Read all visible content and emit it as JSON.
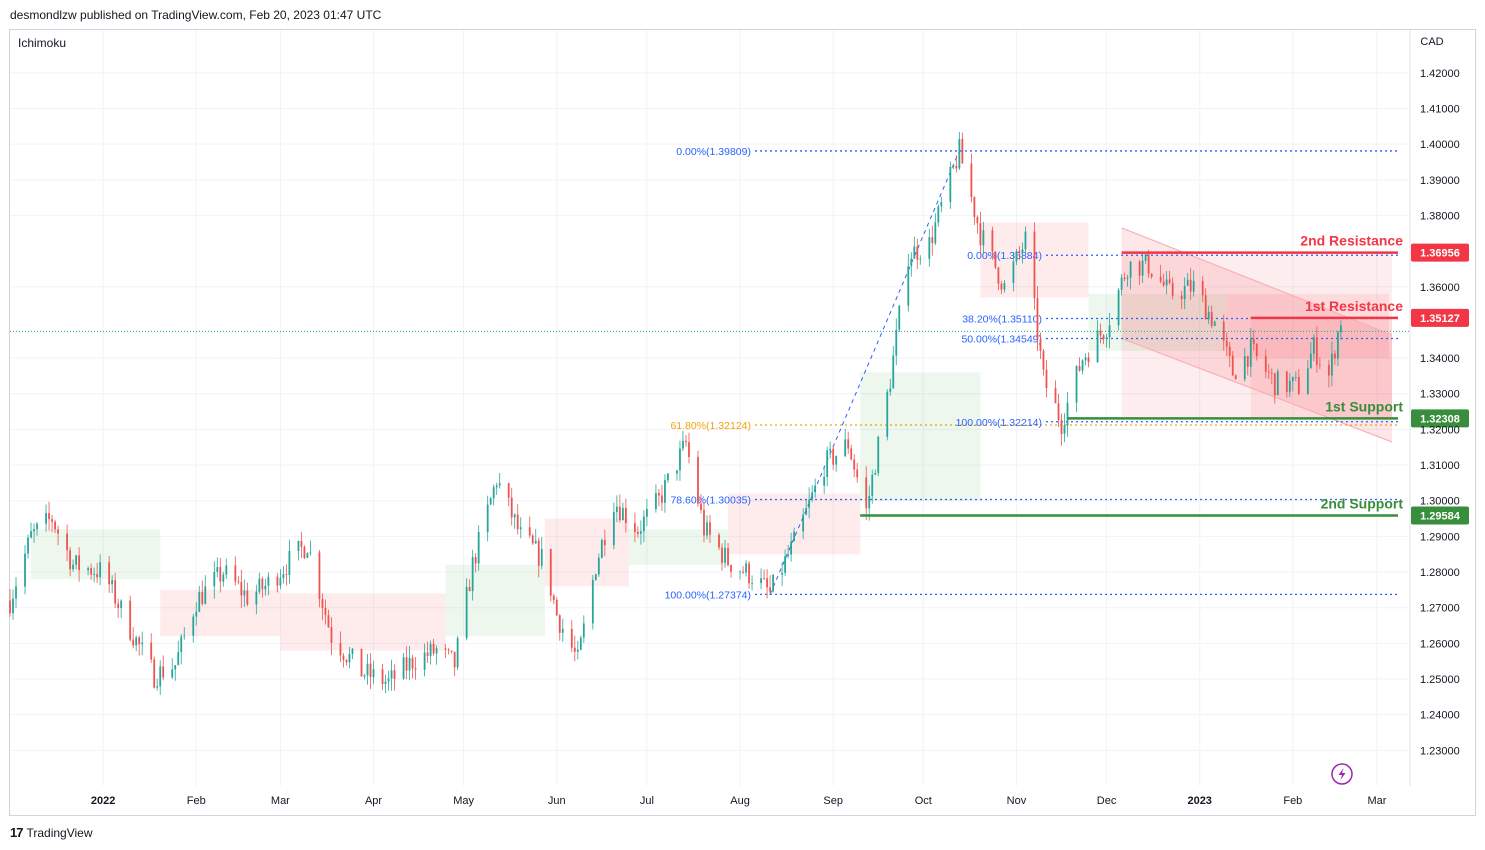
{
  "header": {
    "publisher": "desmondlzw published on TradingView.com, Feb 20, 2023 01:47 UTC"
  },
  "indicator": "Ichimoku",
  "currency": "CAD",
  "footer": {
    "brand": "TradingView",
    "logo": "17"
  },
  "colors": {
    "up": "#26a69a",
    "down": "#ef5350",
    "resistance": "#f23645",
    "support": "#388e3c",
    "fib_blue": "#2962ff",
    "fib_gold": "#f0a30a",
    "channel": "#f8b0b5",
    "price_line": "#26a69a"
  },
  "icons": {
    "flash": "lightning-icon"
  },
  "chart_data": {
    "type": "candlestick",
    "symbol_currency": "CAD",
    "ylim": [
      1.22,
      1.432
    ],
    "y_ticks": [
      "1.42000",
      "1.41000",
      "1.40000",
      "1.39000",
      "1.38000",
      "1.36000",
      "1.34000",
      "1.33000",
      "1.32000",
      "1.31000",
      "1.30000",
      "1.29000",
      "1.28000",
      "1.27000",
      "1.26000",
      "1.25000",
      "1.24000",
      "1.23000"
    ],
    "x_ticks": [
      {
        "label": "2022",
        "date": "2022-01-01",
        "bold": true
      },
      {
        "label": "Feb",
        "date": "2022-02-01"
      },
      {
        "label": "Mar",
        "date": "2022-03-01"
      },
      {
        "label": "Apr",
        "date": "2022-04-01"
      },
      {
        "label": "May",
        "date": "2022-05-01"
      },
      {
        "label": "Jun",
        "date": "2022-06-01"
      },
      {
        "label": "Jul",
        "date": "2022-07-01"
      },
      {
        "label": "Aug",
        "date": "2022-08-01"
      },
      {
        "label": "Sep",
        "date": "2022-09-01"
      },
      {
        "label": "Oct",
        "date": "2022-10-01"
      },
      {
        "label": "Nov",
        "date": "2022-11-01"
      },
      {
        "label": "Dec",
        "date": "2022-12-01"
      },
      {
        "label": "2023",
        "date": "2023-01-01",
        "bold": true
      },
      {
        "label": "Feb",
        "date": "2023-02-01"
      },
      {
        "label": "Mar",
        "date": "2023-03-01"
      }
    ],
    "x_range": [
      "2021-12-01",
      "2023-03-12"
    ],
    "price_path": [
      [
        "2021-12-01",
        1.272
      ],
      [
        "2021-12-08",
        1.29
      ],
      [
        "2021-12-15",
        1.295
      ],
      [
        "2021-12-22",
        1.282
      ],
      [
        "2022-01-01",
        1.28
      ],
      [
        "2022-01-10",
        1.264
      ],
      [
        "2022-01-18",
        1.251
      ],
      [
        "2022-01-25",
        1.254
      ],
      [
        "2022-02-01",
        1.272
      ],
      [
        "2022-02-10",
        1.28
      ],
      [
        "2022-02-18",
        1.273
      ],
      [
        "2022-02-24",
        1.276
      ],
      [
        "2022-03-04",
        1.283
      ],
      [
        "2022-03-10",
        1.288
      ],
      [
        "2022-03-18",
        1.262
      ],
      [
        "2022-03-28",
        1.252
      ],
      [
        "2022-04-06",
        1.249
      ],
      [
        "2022-04-14",
        1.255
      ],
      [
        "2022-04-22",
        1.258
      ],
      [
        "2022-04-28",
        1.254
      ],
      [
        "2022-05-04",
        1.282
      ],
      [
        "2022-05-12",
        1.306
      ],
      [
        "2022-05-20",
        1.29
      ],
      [
        "2022-05-28",
        1.283
      ],
      [
        "2022-06-01",
        1.268
      ],
      [
        "2022-06-08",
        1.255
      ],
      [
        "2022-06-14",
        1.282
      ],
      [
        "2022-06-20",
        1.3
      ],
      [
        "2022-06-28",
        1.292
      ],
      [
        "2022-07-05",
        1.3
      ],
      [
        "2022-07-14",
        1.316
      ],
      [
        "2022-07-20",
        1.292
      ],
      [
        "2022-07-28",
        1.283
      ],
      [
        "2022-08-05",
        1.279
      ],
      [
        "2022-08-11",
        1.274
      ],
      [
        "2022-08-20",
        1.29
      ],
      [
        "2022-08-29",
        1.31
      ],
      [
        "2022-09-06",
        1.316
      ],
      [
        "2022-09-12",
        1.297
      ],
      [
        "2022-09-20",
        1.334
      ],
      [
        "2022-09-26",
        1.369
      ],
      [
        "2022-10-03",
        1.372
      ],
      [
        "2022-10-13",
        1.398
      ],
      [
        "2022-10-20",
        1.375
      ],
      [
        "2022-10-28",
        1.36
      ],
      [
        "2022-11-04",
        1.373
      ],
      [
        "2022-11-10",
        1.334
      ],
      [
        "2022-11-16",
        1.322
      ],
      [
        "2022-11-23",
        1.34
      ],
      [
        "2022-12-01",
        1.349
      ],
      [
        "2022-12-08",
        1.366
      ],
      [
        "2022-12-15",
        1.366
      ],
      [
        "2022-12-22",
        1.358
      ],
      [
        "2022-12-30",
        1.36
      ],
      [
        "2023-01-06",
        1.35
      ],
      [
        "2023-01-12",
        1.336
      ],
      [
        "2023-01-18",
        1.342
      ],
      [
        "2023-01-26",
        1.333
      ],
      [
        "2023-02-03",
        1.332
      ],
      [
        "2023-02-08",
        1.343
      ],
      [
        "2023-02-13",
        1.335
      ],
      [
        "2023-02-17",
        1.351
      ],
      [
        "2023-02-18",
        1.348
      ]
    ],
    "cloud_segments": [
      {
        "from": "2021-12-08",
        "to": "2022-01-20",
        "hi": 1.292,
        "lo": 1.278,
        "bias": "bull"
      },
      {
        "from": "2022-01-20",
        "to": "2022-03-01",
        "hi": 1.275,
        "lo": 1.262,
        "bias": "bear"
      },
      {
        "from": "2022-03-01",
        "to": "2022-04-25",
        "hi": 1.274,
        "lo": 1.258,
        "bias": "bear"
      },
      {
        "from": "2022-04-25",
        "to": "2022-05-28",
        "hi": 1.282,
        "lo": 1.262,
        "bias": "bull"
      },
      {
        "from": "2022-05-28",
        "to": "2022-06-25",
        "hi": 1.295,
        "lo": 1.276,
        "bias": "bear"
      },
      {
        "from": "2022-06-25",
        "to": "2022-07-28",
        "hi": 1.292,
        "lo": 1.282,
        "bias": "bull"
      },
      {
        "from": "2022-07-28",
        "to": "2022-09-10",
        "hi": 1.302,
        "lo": 1.285,
        "bias": "bear"
      },
      {
        "from": "2022-09-10",
        "to": "2022-10-20",
        "hi": 1.336,
        "lo": 1.3,
        "bias": "bull"
      },
      {
        "from": "2022-10-20",
        "to": "2022-11-25",
        "hi": 1.378,
        "lo": 1.357,
        "bias": "bear"
      },
      {
        "from": "2022-11-25",
        "to": "2023-01-10",
        "hi": 1.358,
        "lo": 1.342,
        "bias": "bull"
      },
      {
        "from": "2023-01-10",
        "to": "2023-03-05",
        "hi": 1.358,
        "lo": 1.34,
        "bias": "bear"
      }
    ],
    "current_price": 1.3475,
    "levels": [
      {
        "name": "2nd Resistance",
        "value": "1.36956",
        "y": 1.36956,
        "kind": "resistance",
        "from": "2022-12-06",
        "to": "2023-03-08"
      },
      {
        "name": "1st Resistance",
        "value": "1.35127",
        "y": 1.35127,
        "kind": "resistance",
        "from": "2023-01-18",
        "to": "2023-03-08"
      },
      {
        "name": "1st Support",
        "value": "1.32308",
        "y": 1.32308,
        "kind": "support",
        "from": "2022-11-18",
        "to": "2023-03-08"
      },
      {
        "name": "2nd Support",
        "value": "1.29584",
        "y": 1.29584,
        "kind": "support",
        "from": "2022-09-10",
        "to": "2023-03-08"
      }
    ],
    "fib_large": {
      "anchor_low": [
        "2022-08-11",
        1.27374
      ],
      "anchor_high": [
        "2022-10-13",
        1.39809
      ],
      "line_end": "2023-03-08",
      "lines": [
        {
          "label": "0.00%(1.39809)",
          "y": 1.39809,
          "color": "blue"
        },
        {
          "label": "61.80%(1.32124)",
          "y": 1.32124,
          "color": "gold"
        },
        {
          "label": "78.60%(1.30035)",
          "y": 1.30035,
          "color": "blue"
        },
        {
          "label": "100.00%(1.27374)",
          "y": 1.27374,
          "color": "blue"
        }
      ]
    },
    "fib_small": {
      "line_end": "2023-03-08",
      "lines": [
        {
          "label": "0.00%(1.36884)",
          "y": 1.36884,
          "color": "blue"
        },
        {
          "label": "38.20%(1.35110)",
          "y": 1.3511,
          "color": "blue"
        },
        {
          "label": "50.00%(1.34549)",
          "y": 1.34549,
          "color": "blue"
        },
        {
          "label": "100.00%(1.32214)",
          "y": 1.32214,
          "color": "blue"
        }
      ]
    },
    "channel": {
      "upper": [
        [
          "2022-12-06",
          1.3765
        ],
        [
          "2023-03-06",
          1.3465
        ]
      ],
      "lower": [
        [
          "2022-12-06",
          1.3455
        ],
        [
          "2023-03-06",
          1.3165
        ]
      ]
    },
    "zones": [
      {
        "from": "2022-12-06",
        "to": "2023-03-06",
        "top": 1.3697,
        "bottom": 1.323
      },
      {
        "from": "2023-01-18",
        "to": "2023-03-06",
        "top": 1.3513,
        "bottom": 1.323
      }
    ]
  }
}
